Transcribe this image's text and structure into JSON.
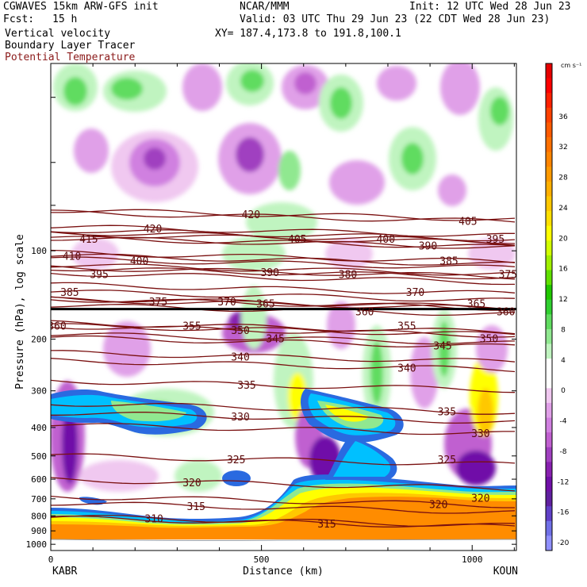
{
  "header": {
    "model": "CGWAVES 15km ARW-GFS init",
    "center": "NCAR/MMM",
    "init": "Init: 12 UTC Wed 28 Jun 23",
    "fcst_label": "Fcst:",
    "fcst_value": "15 h",
    "valid": "Valid: 03 UTC Thu 29 Jun 23 (22 CDT Wed 28 Jun 23)",
    "field1": "Vertical velocity",
    "field2": "Boundary Layer Tracer",
    "field3": "Potential Temperature",
    "xy": "XY= 187.4,173.8 to 191.8,100.1"
  },
  "colors": {
    "theta": "#7a1010",
    "field3_text": "#8b1a1a",
    "bl_tracer": "#ff8c00"
  },
  "chart_data": {
    "type": "cross-section",
    "xlabel": "Distance (km)",
    "ylabel": "Pressure (hPa), log scale",
    "x_ticks": [
      0,
      500,
      1000
    ],
    "x_tick_labels": [
      "0",
      "500",
      "1000"
    ],
    "xlim": [
      0,
      1105
    ],
    "y_scale": "log",
    "ylim": [
      1050,
      23
    ],
    "y_ticks": [
      100,
      200,
      300,
      400,
      500,
      600,
      700,
      800,
      900,
      1000
    ],
    "y_tick_labels": [
      "100",
      "200",
      "300",
      "400",
      "500",
      "600",
      "700",
      "800",
      "900",
      "1000"
    ],
    "x_endpoints": {
      "left": "KABR",
      "right": "KOUN"
    },
    "tropopause_pressure": 158,
    "theta_labels": [
      {
        "v": "420",
        "x": 475,
        "p": 75
      },
      {
        "v": "420",
        "x": 242,
        "p": 84
      },
      {
        "v": "415",
        "x": 90,
        "p": 91
      },
      {
        "v": "405",
        "x": 990,
        "p": 79
      },
      {
        "v": "405",
        "x": 585,
        "p": 91
      },
      {
        "v": "400",
        "x": 795,
        "p": 91
      },
      {
        "v": "395",
        "x": 1055,
        "p": 91
      },
      {
        "v": "390",
        "x": 895,
        "p": 96
      },
      {
        "v": "410",
        "x": 50,
        "p": 104
      },
      {
        "v": "400",
        "x": 210,
        "p": 108
      },
      {
        "v": "385",
        "x": 945,
        "p": 108
      },
      {
        "v": "390",
        "x": 520,
        "p": 118
      },
      {
        "v": "395",
        "x": 115,
        "p": 120
      },
      {
        "v": "380",
        "x": 705,
        "p": 120
      },
      {
        "v": "375",
        "x": 1085,
        "p": 120
      },
      {
        "v": "385",
        "x": 45,
        "p": 138
      },
      {
        "v": "370",
        "x": 865,
        "p": 138
      },
      {
        "v": "375",
        "x": 255,
        "p": 149
      },
      {
        "v": "370",
        "x": 418,
        "p": 149
      },
      {
        "v": "365",
        "x": 510,
        "p": 151
      },
      {
        "v": "365",
        "x": 1010,
        "p": 151
      },
      {
        "v": "360",
        "x": 745,
        "p": 161
      },
      {
        "v": "360",
        "x": 1080,
        "p": 161
      },
      {
        "v": "360",
        "x": 15,
        "p": 180
      },
      {
        "v": "355",
        "x": 335,
        "p": 180
      },
      {
        "v": "355",
        "x": 845,
        "p": 180
      },
      {
        "v": "350",
        "x": 450,
        "p": 186
      },
      {
        "v": "350",
        "x": 1040,
        "p": 199
      },
      {
        "v": "345",
        "x": 533,
        "p": 199
      },
      {
        "v": "345",
        "x": 930,
        "p": 210
      },
      {
        "v": "340",
        "x": 450,
        "p": 229
      },
      {
        "v": "340",
        "x": 845,
        "p": 250
      },
      {
        "v": "335",
        "x": 465,
        "p": 286
      },
      {
        "v": "335",
        "x": 940,
        "p": 352
      },
      {
        "v": "330",
        "x": 450,
        "p": 367
      },
      {
        "v": "330",
        "x": 1020,
        "p": 418
      },
      {
        "v": "325",
        "x": 440,
        "p": 513
      },
      {
        "v": "325",
        "x": 940,
        "p": 513
      },
      {
        "v": "320",
        "x": 335,
        "p": 615
      },
      {
        "v": "320",
        "x": 920,
        "p": 729
      },
      {
        "v": "320",
        "x": 1020,
        "p": 694
      },
      {
        "v": "315",
        "x": 345,
        "p": 740
      },
      {
        "v": "310",
        "x": 245,
        "p": 817
      },
      {
        "v": "315",
        "x": 655,
        "p": 849
      }
    ],
    "colorbar": {
      "unit": "cm s⁻¹",
      "label_values": [
        "36",
        "32",
        "28",
        "24",
        "20",
        "16",
        "12",
        "8",
        "4",
        "0",
        "-4",
        "-8",
        "-12",
        "-16",
        "-20"
      ],
      "segment_values": [
        42,
        40,
        38,
        36,
        34,
        32,
        30,
        28,
        26,
        24,
        22,
        20,
        18,
        16,
        14,
        12,
        10,
        8,
        6,
        4,
        2,
        0,
        -2,
        -4,
        -6,
        -8,
        -10,
        -12,
        -14,
        -16,
        -18,
        -20,
        -22
      ],
      "colors": [
        "#e60000",
        "#ff0000",
        "#ff2000",
        "#ff4000",
        "#ff5a00",
        "#ff7000",
        "#ff8500",
        "#ff9a00",
        "#ffb000",
        "#ffc800",
        "#ffe000",
        "#ffff00",
        "#d2ff00",
        "#a0f000",
        "#60e000",
        "#20c800",
        "#30d030",
        "#60dc60",
        "#90e890",
        "#c0f4c0",
        "#ffffff",
        "#ffffff",
        "#f0c8f0",
        "#e0a0e8",
        "#d080e0",
        "#c060d0",
        "#a040c0",
        "#8820b0",
        "#7010a8",
        "#6020a0",
        "#6040c8",
        "#7070e8",
        "#9090ff"
      ]
    }
  }
}
